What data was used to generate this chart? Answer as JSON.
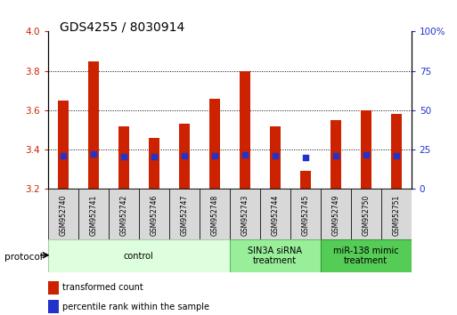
{
  "title": "GDS4255 / 8030914",
  "samples": [
    "GSM952740",
    "GSM952741",
    "GSM952742",
    "GSM952746",
    "GSM952747",
    "GSM952748",
    "GSM952743",
    "GSM952744",
    "GSM952745",
    "GSM952749",
    "GSM952750",
    "GSM952751"
  ],
  "transformed_count": [
    3.65,
    3.85,
    3.52,
    3.46,
    3.53,
    3.66,
    3.8,
    3.52,
    3.29,
    3.55,
    3.6,
    3.58
  ],
  "percentile_rank": [
    21.0,
    22.0,
    20.5,
    20.5,
    21.0,
    21.0,
    21.5,
    21.0,
    20.0,
    21.0,
    21.5,
    21.0
  ],
  "bar_color": "#cc2200",
  "dot_color": "#2233cc",
  "ylim_left": [
    3.2,
    4.0
  ],
  "ylim_right": [
    0,
    100
  ],
  "yticks_left": [
    3.2,
    3.4,
    3.6,
    3.8,
    4.0
  ],
  "yticks_right": [
    0,
    25,
    50,
    75,
    100
  ],
  "groups": [
    {
      "label": "control",
      "start": 0,
      "end": 6,
      "color": "#ddffdd",
      "edge_color": "#aaccaa"
    },
    {
      "label": "SIN3A siRNA\ntreatment",
      "start": 6,
      "end": 9,
      "color": "#99ee99",
      "edge_color": "#66bb66"
    },
    {
      "label": "miR-138 mimic\ntreatment",
      "start": 9,
      "end": 12,
      "color": "#55cc55",
      "edge_color": "#339933"
    }
  ],
  "legend_red_label": "transformed count",
  "legend_blue_label": "percentile rank within the sample",
  "bar_width": 0.35,
  "background_color": "#ffffff",
  "tick_label_color_left": "#cc2200",
  "tick_label_color_right": "#2233cc",
  "title_fontsize": 10,
  "protocol_label": "protocol"
}
